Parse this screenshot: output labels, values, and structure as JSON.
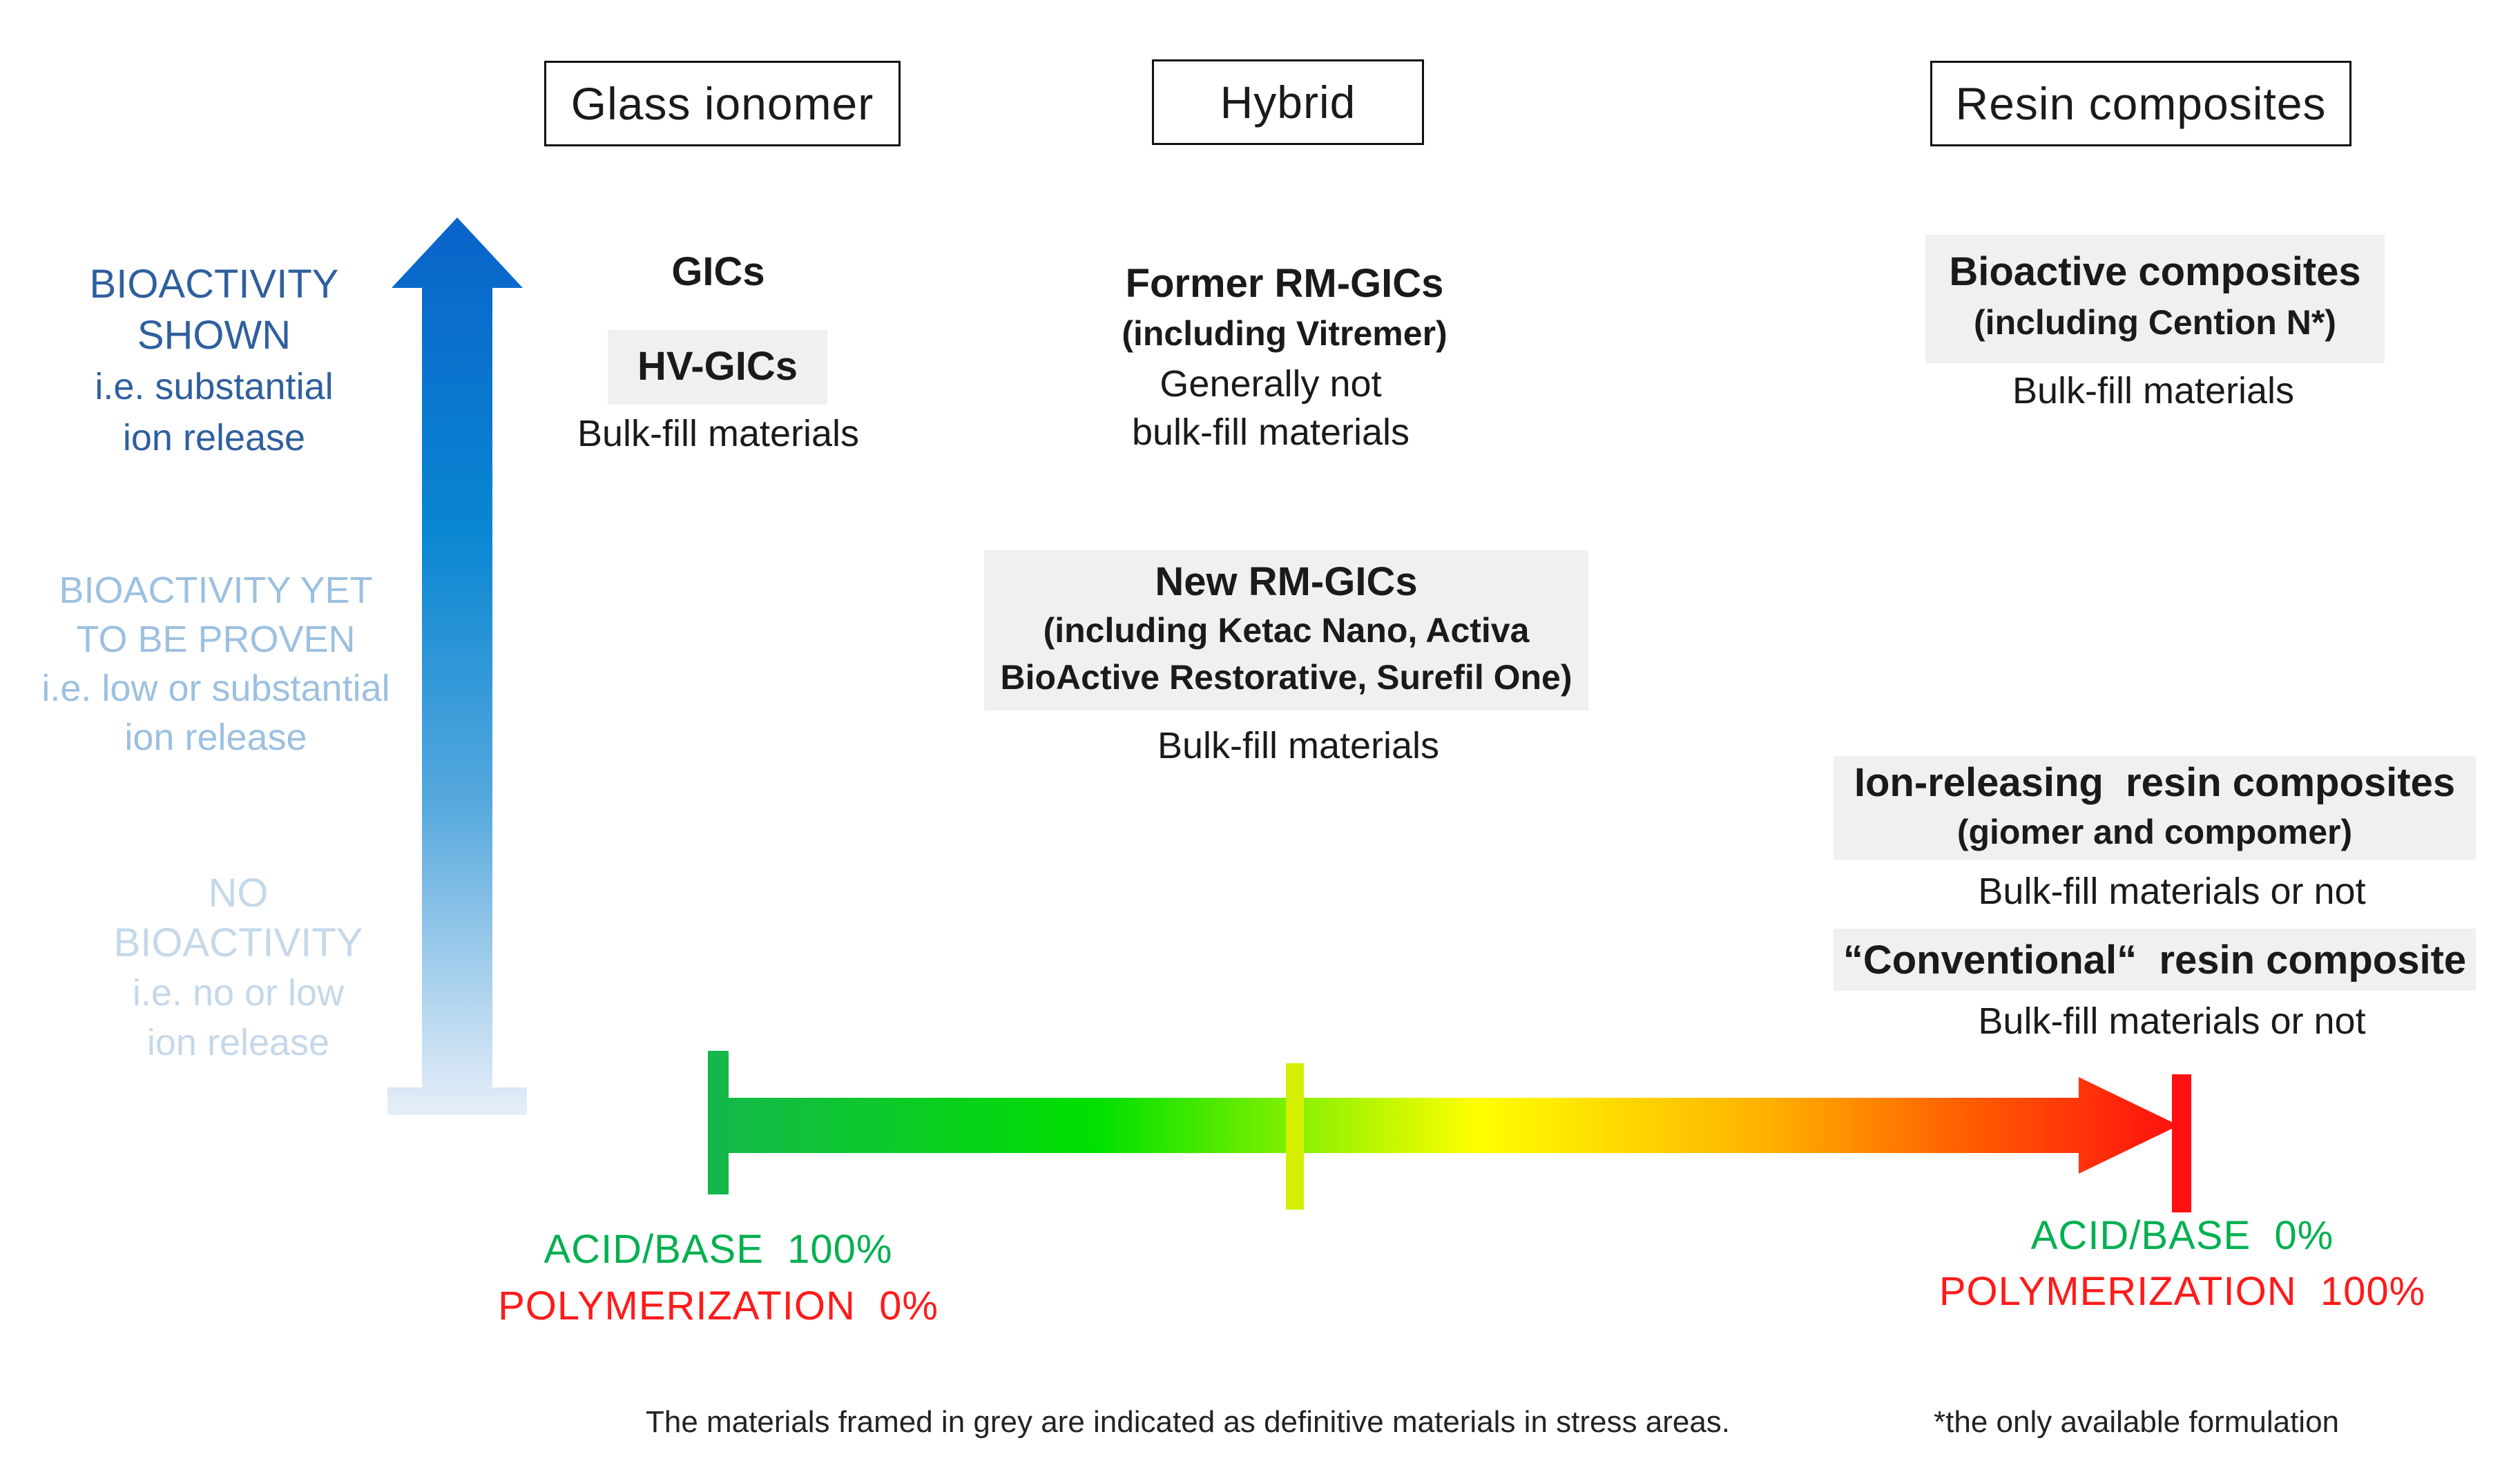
{
  "categories": {
    "glass_ionomer": "Glass ionomer",
    "hybrid": "Hybrid",
    "resin_composites": "Resin composites"
  },
  "bioactivity": {
    "shown": [
      "BIOACTIVITY",
      "SHOWN",
      "i.e. substantial",
      "ion release"
    ],
    "yet_to_be_proven": [
      "BIOACTIVITY YET",
      "TO BE PROVEN",
      "i.e. low or substantial",
      "ion release"
    ],
    "none": [
      "NO",
      "BIOACTIVITY",
      "i.e. no or low",
      "ion release"
    ]
  },
  "glass_ionomer": {
    "gics": "GICs",
    "hv_gics": "HV-GICs",
    "note": "Bulk-fill materials"
  },
  "hybrid": {
    "former_title": "Former RM-GICs",
    "former_sub": "(including Vitremer)",
    "former_note_1": "Generally not",
    "former_note_2": "bulk-fill materials",
    "new_title": "New RM-GICs",
    "new_sub_1": "(including Ketac Nano, Activa",
    "new_sub_2": "BioActive Restorative, Surefil One)",
    "new_note": "Bulk-fill materials"
  },
  "resin": {
    "bioactive_title": "Bioactive composites",
    "bioactive_sub": "(including Cention N*)",
    "bioactive_note": "Bulk-fill materials",
    "ion_title": "Ion-releasing  resin composites",
    "ion_sub": "(giomer and compomer)",
    "ion_note": "Bulk-fill materials or not",
    "conv_title": "“Conventional“  resin composite",
    "conv_note": "Bulk-fill materials or not"
  },
  "axis": {
    "left_acid": "ACID/BASE  100%",
    "left_poly": "POLYMERIZATION  0%",
    "right_acid": "ACID/BASE  0%",
    "right_poly": "POLYMERIZATION  100%"
  },
  "footnotes": {
    "grey_note": "The materials framed in grey are indicated as definitive materials in stress areas.",
    "star_note": "*the only available formulation"
  },
  "colors": {
    "bio_strong": "#2f5f9e",
    "bio_mid": "#9dc0e0",
    "bio_weak": "#c5d8ea",
    "acid_green": "#00b050",
    "poly_red": "#ff1a1a",
    "grey_frame": "#f0f0f0"
  }
}
